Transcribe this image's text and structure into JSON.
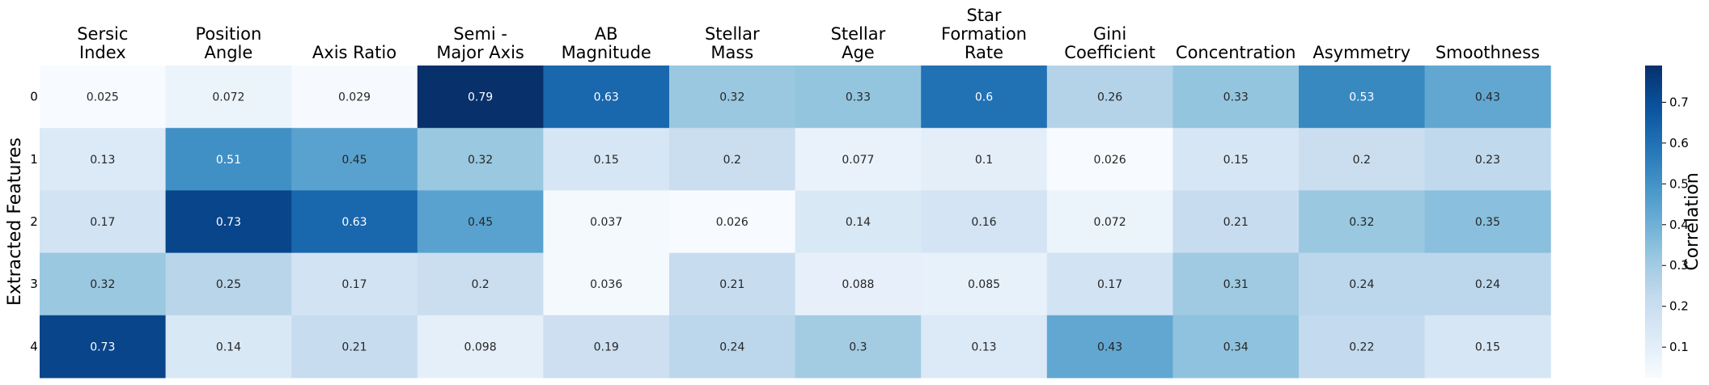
{
  "chart_data": {
    "type": "heatmap",
    "title": "",
    "xlabel": "",
    "ylabel": "Extracted Features",
    "columns": [
      [
        "Sersic",
        "Index"
      ],
      [
        "Position",
        "Angle"
      ],
      [
        "Axis Ratio"
      ],
      [
        "Semi -",
        "Major Axis"
      ],
      [
        "AB",
        "Magnitude"
      ],
      [
        "Stellar",
        "Mass"
      ],
      [
        "Stellar",
        "Age"
      ],
      [
        "Star",
        "Formation",
        "Rate"
      ],
      [
        "Gini",
        "Coefficient"
      ],
      [
        "Concentration"
      ],
      [
        "Asymmetry"
      ],
      [
        "Smoothness"
      ]
    ],
    "rows": [
      "0",
      "1",
      "2",
      "3",
      "4"
    ],
    "values": [
      [
        0.025,
        0.072,
        0.029,
        0.79,
        0.63,
        0.32,
        0.33,
        0.6,
        0.26,
        0.33,
        0.53,
        0.43
      ],
      [
        0.13,
        0.51,
        0.45,
        0.32,
        0.15,
        0.2,
        0.077,
        0.1,
        0.026,
        0.15,
        0.2,
        0.23
      ],
      [
        0.17,
        0.73,
        0.63,
        0.45,
        0.037,
        0.026,
        0.14,
        0.16,
        0.072,
        0.21,
        0.32,
        0.35
      ],
      [
        0.32,
        0.25,
        0.17,
        0.2,
        0.036,
        0.21,
        0.088,
        0.085,
        0.17,
        0.31,
        0.24,
        0.24
      ],
      [
        0.73,
        0.14,
        0.21,
        0.098,
        0.19,
        0.24,
        0.3,
        0.13,
        0.43,
        0.34,
        0.22,
        0.15
      ]
    ],
    "colormap": "Blues",
    "vmin": 0.025,
    "vmax": 0.79,
    "colorbar": {
      "label": "Correlation",
      "ticks": [
        0.1,
        0.2,
        0.3,
        0.4,
        0.5,
        0.6,
        0.7
      ],
      "tick_labels": [
        "0.1",
        "0.2",
        "0.3",
        "0.4",
        "0.5",
        "0.6",
        "0.7"
      ]
    }
  }
}
